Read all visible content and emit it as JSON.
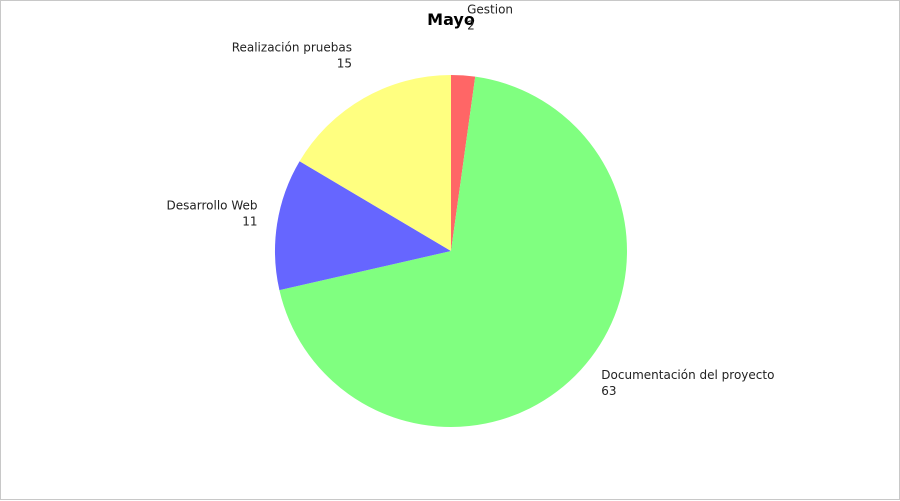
{
  "chart_data": {
    "type": "pie",
    "title": "Mayo",
    "categories": [
      "Gestion",
      "Documentación del proyecto",
      "Desarrollo Web",
      "Realización pruebas"
    ],
    "values": [
      2,
      63,
      11,
      15
    ],
    "colors": [
      "#ff6666",
      "#80ff80",
      "#6666ff",
      "#ffff80"
    ],
    "start_angle_deg": 0,
    "direction": "clockwise",
    "legend": "none",
    "labels_position": "outside"
  }
}
